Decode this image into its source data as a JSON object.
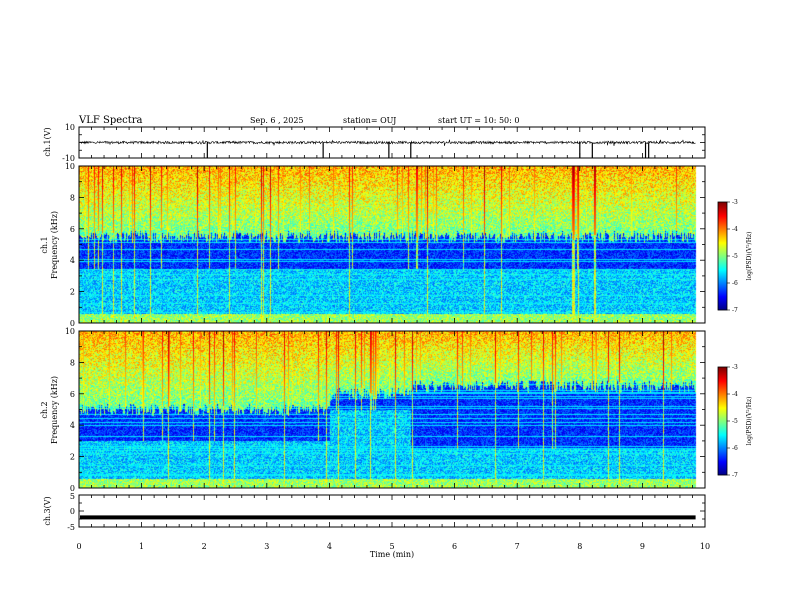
{
  "header": {
    "title": "VLF Spectra",
    "date": "Sep. 6 , 2025",
    "station": "station= OUJ",
    "start": "start UT =  10: 50: 0"
  },
  "chart_data": [
    {
      "type": "line",
      "name": "ch1-waveform",
      "ylabel": "ch.1(V)",
      "ylim": [
        -10,
        10
      ],
      "yticks": [
        "10",
        "-10"
      ],
      "baseline": 0,
      "spikes_at_min": [
        2.05,
        3.9,
        4.95,
        5.3,
        8.0,
        8.2,
        9.05,
        9.1
      ]
    },
    {
      "type": "heatmap",
      "name": "ch1-spectrogram",
      "ylabel": "ch.1\nFrequency (kHz)",
      "ylim": [
        0,
        10
      ],
      "yticks": [
        "0",
        "2",
        "4",
        "6",
        "8",
        "10"
      ],
      "colorbar": {
        "label": "log(PSD)(V²/Hz)",
        "ticks": [
          "-3",
          "-4",
          "-5",
          "-6",
          "-7"
        ],
        "range": [
          -7,
          -3
        ]
      },
      "segments": [
        {
          "from_min": 0,
          "to_min": 10,
          "low_band_khz": 3.5,
          "noise_top_khz": 5.5
        }
      ]
    },
    {
      "type": "heatmap",
      "name": "ch2-spectrogram",
      "ylabel": "ch.2\nFrequency (kHz)",
      "ylim": [
        0,
        10
      ],
      "yticks": [
        "0",
        "2",
        "4",
        "6",
        "8",
        "10"
      ],
      "colorbar": {
        "label": "log(PSD)(V²/Hz)",
        "ticks": [
          "-3",
          "-4",
          "-5",
          "-6",
          "-7"
        ],
        "range": [
          -7,
          -3
        ]
      },
      "segments": [
        {
          "from_min": 0,
          "to_min": 4.0,
          "low_band_khz": 3.0,
          "noise_top_khz": 5.0
        },
        {
          "from_min": 4.0,
          "to_min": 5.3,
          "low_band_khz": 5.0,
          "noise_top_khz": 6.0
        },
        {
          "from_min": 5.3,
          "to_min": 10,
          "low_band_khz": 2.5,
          "noise_top_khz": 6.5
        }
      ]
    },
    {
      "type": "line",
      "name": "ch3-waveform",
      "ylabel": "ch.3(V)",
      "ylim": [
        -5,
        5
      ],
      "yticks": [
        "5",
        "0",
        "-5"
      ],
      "baseline": -2
    }
  ],
  "xaxis": {
    "label": "Time (min)",
    "range": [
      0,
      10
    ],
    "ticks": [
      "0",
      "1",
      "2",
      "3",
      "4",
      "5",
      "6",
      "7",
      "8",
      "9",
      "10"
    ],
    "data_end_min": 9.85
  }
}
